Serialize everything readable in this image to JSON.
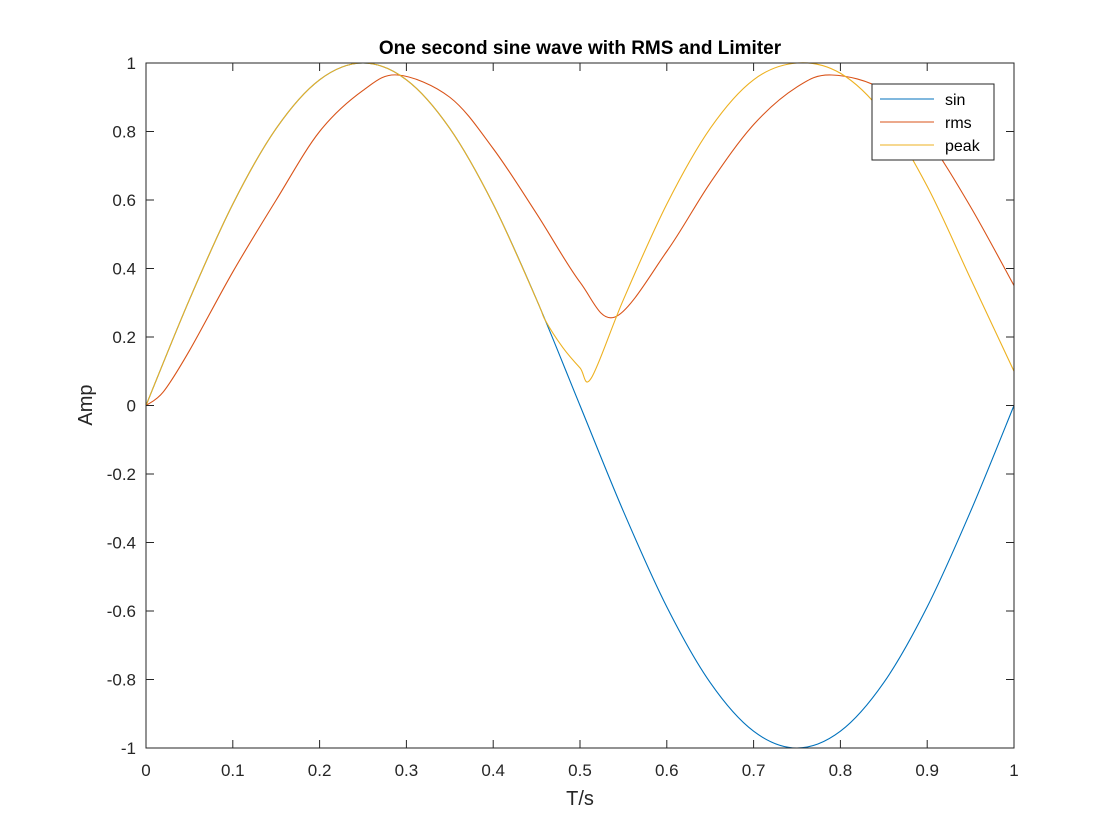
{
  "chart_data": {
    "type": "line",
    "title": "One second sine wave with RMS and Limiter",
    "xlabel": "T/s",
    "ylabel": "Amp",
    "xlim": [
      0,
      1
    ],
    "ylim": [
      -1,
      1
    ],
    "xticks": [
      0,
      0.1,
      0.2,
      0.3,
      0.4,
      0.5,
      0.6,
      0.7,
      0.8,
      0.9,
      1
    ],
    "xtick_labels": [
      "0",
      "0.1",
      "0.2",
      "0.3",
      "0.4",
      "0.5",
      "0.6",
      "0.7",
      "0.8",
      "0.9",
      "1"
    ],
    "yticks": [
      -1,
      -0.8,
      -0.6,
      -0.4,
      -0.2,
      0,
      0.2,
      0.4,
      0.6,
      0.8,
      1
    ],
    "ytick_labels": [
      "-1",
      "-0.8",
      "-0.6",
      "-0.4",
      "-0.2",
      "0",
      "0.2",
      "0.4",
      "0.6",
      "0.8",
      "1"
    ],
    "grid": false,
    "legend_position": "top-right",
    "series": [
      {
        "name": "sin",
        "color": "#0072BD",
        "x": [
          0,
          0.05,
          0.1,
          0.15,
          0.2,
          0.25,
          0.3,
          0.35,
          0.4,
          0.45,
          0.5,
          0.55,
          0.6,
          0.65,
          0.7,
          0.75,
          0.8,
          0.85,
          0.9,
          0.95,
          1
        ],
        "y": [
          0,
          0.309,
          0.588,
          0.809,
          0.951,
          1,
          0.951,
          0.809,
          0.588,
          0.309,
          0,
          -0.309,
          -0.588,
          -0.809,
          -0.951,
          -1,
          -0.951,
          -0.809,
          -0.588,
          -0.309,
          0
        ]
      },
      {
        "name": "rms",
        "color": "#D95319",
        "x": [
          0,
          0.02,
          0.05,
          0.1,
          0.15,
          0.2,
          0.25,
          0.29,
          0.35,
          0.4,
          0.45,
          0.5,
          0.54,
          0.6,
          0.65,
          0.7,
          0.75,
          0.79,
          0.85,
          0.9,
          0.95,
          1
        ],
        "y": [
          0,
          0.04,
          0.16,
          0.39,
          0.6,
          0.8,
          0.92,
          0.965,
          0.9,
          0.75,
          0.56,
          0.36,
          0.258,
          0.45,
          0.65,
          0.82,
          0.93,
          0.965,
          0.92,
          0.78,
          0.58,
          0.35
        ]
      },
      {
        "name": "peak",
        "color": "#EDB120",
        "x": [
          0,
          0.05,
          0.1,
          0.15,
          0.2,
          0.25,
          0.3,
          0.35,
          0.4,
          0.45,
          0.46,
          0.48,
          0.5,
          0.513,
          0.55,
          0.6,
          0.65,
          0.7,
          0.75,
          0.8,
          0.85,
          0.9,
          0.95,
          1
        ],
        "y": [
          0,
          0.309,
          0.588,
          0.809,
          0.951,
          1,
          0.951,
          0.809,
          0.588,
          0.309,
          0.249,
          0.17,
          0.11,
          0.08,
          0.309,
          0.588,
          0.809,
          0.951,
          1,
          0.97,
          0.85,
          0.64,
          0.37,
          0.1
        ]
      }
    ]
  }
}
